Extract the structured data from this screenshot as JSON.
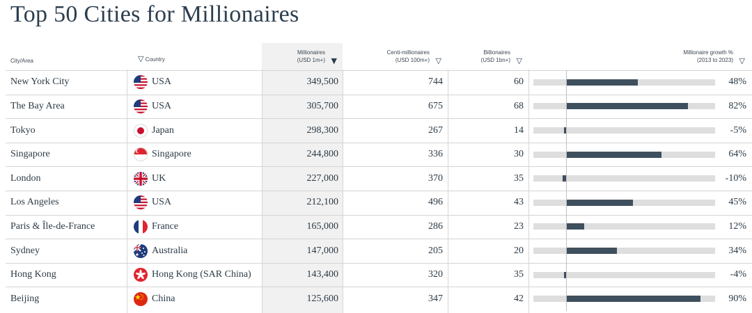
{
  "title": "Top 50 Cities for Millionaires",
  "columns": {
    "city": "City/Area",
    "country": "Country",
    "millionaires": [
      "Millionaires",
      "(USD 1m+)"
    ],
    "centi": [
      "Centi-millionaires",
      "(USD 100m+)"
    ],
    "billionaires": [
      "Billionaires",
      "(USD 1bn+)"
    ],
    "growth": [
      "Millionaire growth %",
      "(2013 to 2023)"
    ]
  },
  "rows": [
    {
      "city": "New York City",
      "country": "USA",
      "flag": "us",
      "millionaires": "349,500",
      "centi": "744",
      "billionaires": "60",
      "growth_label": "48%"
    },
    {
      "city": "The Bay Area",
      "country": "USA",
      "flag": "us",
      "millionaires": "305,700",
      "centi": "675",
      "billionaires": "68",
      "growth_label": "82%"
    },
    {
      "city": "Tokyo",
      "country": "Japan",
      "flag": "jp",
      "millionaires": "298,300",
      "centi": "267",
      "billionaires": "14",
      "growth_label": "-5%"
    },
    {
      "city": "Singapore",
      "country": "Singapore",
      "flag": "sg",
      "millionaires": "244,800",
      "centi": "336",
      "billionaires": "30",
      "growth_label": "64%"
    },
    {
      "city": "London",
      "country": "UK",
      "flag": "uk",
      "millionaires": "227,000",
      "centi": "370",
      "billionaires": "35",
      "growth_label": "-10%"
    },
    {
      "city": "Los Angeles",
      "country": "USA",
      "flag": "us",
      "millionaires": "212,100",
      "centi": "496",
      "billionaires": "43",
      "growth_label": "45%"
    },
    {
      "city": "Paris & Île-de-France",
      "country": "France",
      "flag": "fr",
      "millionaires": "165,000",
      "centi": "286",
      "billionaires": "23",
      "growth_label": "12%"
    },
    {
      "city": "Sydney",
      "country": "Australia",
      "flag": "au",
      "millionaires": "147,000",
      "centi": "205",
      "billionaires": "20",
      "growth_label": "34%"
    },
    {
      "city": "Hong Kong",
      "country": "Hong Kong (SAR China)",
      "flag": "hk",
      "millionaires": "143,400",
      "centi": "320",
      "billionaires": "35",
      "growth_label": "-4%"
    },
    {
      "city": "Beijing",
      "country": "China",
      "flag": "cn",
      "millionaires": "125,600",
      "centi": "347",
      "billionaires": "42",
      "growth_label": "90%"
    }
  ],
  "colors": {
    "bar": "#3e4f5e",
    "track": "#dedede",
    "highlight_column": "#f1f1f1",
    "title": "#2c3e4e"
  },
  "sort": {
    "column": "millionaires",
    "direction": "descending"
  },
  "chart_data": {
    "type": "bar",
    "orientation": "horizontal",
    "categories": [
      "New York City",
      "The Bay Area",
      "Tokyo",
      "Singapore",
      "London",
      "Los Angeles",
      "Paris & Île-de-France",
      "Sydney",
      "Hong Kong",
      "Beijing"
    ],
    "values": [
      48,
      82,
      -5,
      64,
      -10,
      45,
      12,
      34,
      -4,
      90
    ],
    "xlim": [
      -20,
      100
    ]
  }
}
